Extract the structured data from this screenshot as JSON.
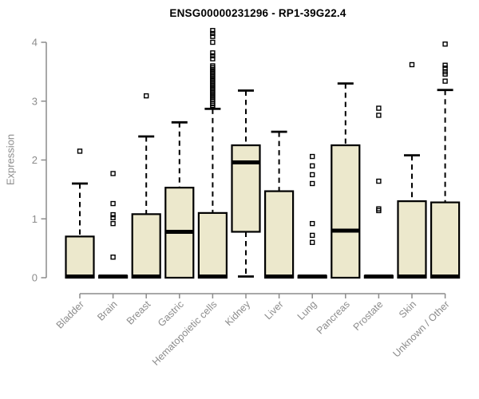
{
  "page": {
    "background_color": "#ffffff"
  },
  "chart_data": {
    "type": "boxplot",
    "title": "ENSG00000231296 - RP1-39G22.4",
    "xlabel": "",
    "ylabel": "Expression",
    "ylim": [
      0,
      4
    ],
    "yticks": [
      0,
      1,
      2,
      3,
      4
    ],
    "grid": false,
    "legend": null,
    "categories": [
      "Bladder",
      "Brain",
      "Breast",
      "Gastric",
      "Hematopoietic cells",
      "Kidney",
      "Liver",
      "Lung",
      "Pancreas",
      "Prostate",
      "Skin",
      "Unknown / Other"
    ],
    "series": [
      {
        "name": "Bladder",
        "whisker_low": 0,
        "q1": 0,
        "median": 0.02,
        "q3": 0.7,
        "whisker_high": 1.6,
        "outliers": [
          2.15
        ]
      },
      {
        "name": "Brain",
        "whisker_low": 0,
        "q1": 0,
        "median": 0.02,
        "q3": 0.03,
        "whisker_high": 0.03,
        "outliers": [
          0.35,
          0.92,
          1.02,
          1.07,
          1.26,
          1.77
        ]
      },
      {
        "name": "Breast",
        "whisker_low": 0,
        "q1": 0,
        "median": 0.02,
        "q3": 1.08,
        "whisker_high": 2.4,
        "outliers": [
          3.09
        ]
      },
      {
        "name": "Gastric",
        "whisker_low": 0,
        "q1": 0,
        "median": 0.78,
        "q3": 1.53,
        "whisker_high": 2.64,
        "outliers": []
      },
      {
        "name": "Hematopoietic cells",
        "whisker_low": 0,
        "q1": 0,
        "median": 0.02,
        "q3": 1.1,
        "whisker_high": 2.87,
        "outliers": [
          2.9,
          2.93,
          2.96,
          3.0,
          3.03,
          3.06,
          3.09,
          3.12,
          3.15,
          3.18,
          3.21,
          3.24,
          3.27,
          3.3,
          3.33,
          3.36,
          3.39,
          3.42,
          3.45,
          3.48,
          3.51,
          3.54,
          3.57,
          3.6,
          3.72,
          3.77,
          3.82,
          4.0,
          4.1,
          4.15,
          4.2
        ]
      },
      {
        "name": "Kidney",
        "whisker_low": 0.02,
        "q1": 0.78,
        "median": 1.96,
        "q3": 2.25,
        "whisker_high": 3.18,
        "outliers": []
      },
      {
        "name": "Liver",
        "whisker_low": 0,
        "q1": 0,
        "median": 0.02,
        "q3": 1.47,
        "whisker_high": 2.48,
        "outliers": []
      },
      {
        "name": "Lung",
        "whisker_low": 0,
        "q1": 0,
        "median": 0.02,
        "q3": 0.03,
        "whisker_high": 0.03,
        "outliers": [
          0.6,
          0.72,
          0.92,
          1.6,
          1.75,
          1.9,
          2.06
        ]
      },
      {
        "name": "Pancreas",
        "whisker_low": 0,
        "q1": 0,
        "median": 0.8,
        "q3": 2.25,
        "whisker_high": 3.3,
        "outliers": []
      },
      {
        "name": "Prostate",
        "whisker_low": 0,
        "q1": 0,
        "median": 0.02,
        "q3": 0.03,
        "whisker_high": 0.03,
        "outliers": [
          1.14,
          1.17,
          1.64,
          2.76,
          2.88
        ]
      },
      {
        "name": "Skin",
        "whisker_low": 0,
        "q1": 0,
        "median": 0.02,
        "q3": 1.3,
        "whisker_high": 2.08,
        "outliers": [
          3.62
        ]
      },
      {
        "name": "Unknown / Other",
        "whisker_low": 0,
        "q1": 0,
        "median": 0.02,
        "q3": 1.28,
        "whisker_high": 3.19,
        "outliers": [
          3.34,
          3.46,
          3.5,
          3.56,
          3.61,
          3.97
        ]
      }
    ],
    "colors": {
      "box_fill": "#ece8cc",
      "box_border": "#000000",
      "median": "#000000",
      "whisker": "#000000",
      "outlier": "#000000",
      "axis": "#8c8c8c",
      "tick_label": "#8c8c8c",
      "title": "#000000"
    }
  }
}
